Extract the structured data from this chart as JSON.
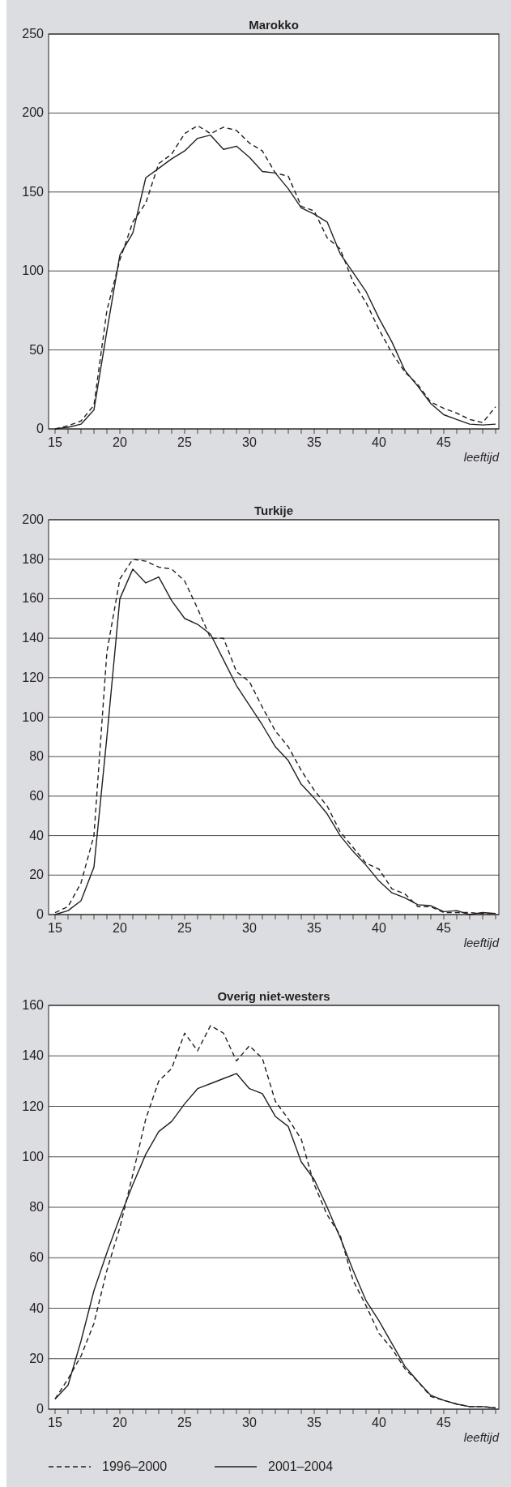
{
  "chart_data": [
    {
      "type": "line",
      "title": "Marokko",
      "xlabel": "leeftijd",
      "x": [
        15,
        16,
        17,
        18,
        19,
        20,
        21,
        22,
        23,
        24,
        25,
        26,
        27,
        28,
        29,
        30,
        31,
        32,
        33,
        34,
        35,
        36,
        37,
        38,
        39,
        40,
        41,
        42,
        43,
        44,
        45,
        46,
        47,
        48,
        49
      ],
      "xlim": [
        14.5,
        49.25
      ],
      "xticks": [
        15,
        {
          "value": 16,
          "label": null
        },
        {
          "value": 17,
          "label": null
        },
        {
          "value": 18,
          "label": null
        },
        {
          "value": 19,
          "label": null
        },
        20,
        {
          "value": 21,
          "label": null
        },
        {
          "value": 22,
          "label": null
        },
        {
          "value": 23,
          "label": null
        },
        {
          "value": 24,
          "label": null
        },
        25,
        {
          "value": 26,
          "label": null
        },
        {
          "value": 27,
          "label": null
        },
        {
          "value": 28,
          "label": null
        },
        {
          "value": 29,
          "label": null
        },
        30,
        {
          "value": 31,
          "label": null
        },
        {
          "value": 32,
          "label": null
        },
        {
          "value": 33,
          "label": null
        },
        {
          "value": 34,
          "label": null
        },
        35,
        {
          "value": 36,
          "label": null
        },
        {
          "value": 37,
          "label": null
        },
        {
          "value": 38,
          "label": null
        },
        {
          "value": 39,
          "label": null
        },
        40,
        {
          "value": 41,
          "label": null
        },
        {
          "value": 42,
          "label": null
        },
        {
          "value": 43,
          "label": null
        },
        {
          "value": 44,
          "label": null
        },
        45,
        {
          "value": 46,
          "label": null
        },
        {
          "value": 47,
          "label": null
        },
        {
          "value": 48,
          "label": null
        },
        {
          "value": 49,
          "label": null
        }
      ],
      "ylim": [
        0,
        250
      ],
      "yticks": [
        0,
        50,
        100,
        150,
        200,
        250
      ],
      "grid": "y",
      "series": [
        {
          "color": "#231f20",
          "line_style": "dashed",
          "values": [
            0,
            2,
            5,
            15,
            75,
            107,
            131,
            143,
            168,
            174,
            187,
            192,
            187,
            191,
            189,
            181,
            176,
            162,
            160,
            141,
            138,
            121,
            114,
            93,
            80,
            63,
            48,
            36,
            28,
            17,
            13,
            10,
            6,
            4,
            14
          ]
        },
        {
          "color": "#231f20",
          "line_style": "solid",
          "values": [
            0,
            1,
            3,
            12,
            62,
            110,
            124,
            159,
            165,
            171,
            176,
            184,
            186,
            177,
            179,
            172,
            163,
            162,
            152,
            140,
            136,
            131,
            111,
            99,
            87,
            70,
            55,
            37,
            27,
            16,
            9,
            6,
            3,
            2.5,
            3
          ]
        }
      ]
    },
    {
      "type": "line",
      "title": "Turkije",
      "xlabel": "leeftijd",
      "x": [
        15,
        16,
        17,
        18,
        19,
        20,
        21,
        22,
        23,
        24,
        25,
        26,
        27,
        28,
        29,
        30,
        31,
        32,
        33,
        34,
        35,
        36,
        37,
        38,
        39,
        40,
        41,
        42,
        43,
        44,
        45,
        46,
        47,
        48,
        49
      ],
      "xlim": [
        14.5,
        49.25
      ],
      "xticks": [
        15,
        {
          "value": 16,
          "label": null
        },
        {
          "value": 17,
          "label": null
        },
        {
          "value": 18,
          "label": null
        },
        {
          "value": 19,
          "label": null
        },
        20,
        {
          "value": 21,
          "label": null
        },
        {
          "value": 22,
          "label": null
        },
        {
          "value": 23,
          "label": null
        },
        {
          "value": 24,
          "label": null
        },
        25,
        {
          "value": 26,
          "label": null
        },
        {
          "value": 27,
          "label": null
        },
        {
          "value": 28,
          "label": null
        },
        {
          "value": 29,
          "label": null
        },
        30,
        {
          "value": 31,
          "label": null
        },
        {
          "value": 32,
          "label": null
        },
        {
          "value": 33,
          "label": null
        },
        {
          "value": 34,
          "label": null
        },
        35,
        {
          "value": 36,
          "label": null
        },
        {
          "value": 37,
          "label": null
        },
        {
          "value": 38,
          "label": null
        },
        {
          "value": 39,
          "label": null
        },
        40,
        {
          "value": 41,
          "label": null
        },
        {
          "value": 42,
          "label": null
        },
        {
          "value": 43,
          "label": null
        },
        {
          "value": 44,
          "label": null
        },
        45,
        {
          "value": 46,
          "label": null
        },
        {
          "value": 47,
          "label": null
        },
        {
          "value": 48,
          "label": null
        },
        {
          "value": 49,
          "label": null
        }
      ],
      "ylim": [
        0,
        200
      ],
      "yticks": [
        0,
        20,
        40,
        60,
        80,
        100,
        120,
        140,
        160,
        180,
        200
      ],
      "grid": "y",
      "series": [
        {
          "color": "#231f20",
          "line_style": "dashed",
          "values": [
            1,
            4,
            16,
            40,
            133,
            170,
            180,
            179,
            176,
            175,
            169,
            155,
            140,
            140,
            123,
            118,
            105,
            93,
            85,
            73,
            63,
            55,
            42,
            34,
            26,
            23,
            13,
            10.5,
            4,
            4,
            1,
            1,
            1,
            0.5,
            0.5
          ]
        },
        {
          "color": "#231f20",
          "line_style": "solid",
          "values": [
            0,
            2,
            7,
            24,
            90,
            160,
            175,
            168,
            171,
            159,
            150,
            147,
            142,
            129,
            116,
            106,
            96,
            85,
            78,
            66,
            59,
            51,
            40,
            32,
            25,
            17,
            11,
            8.5,
            5,
            4.5,
            1.5,
            2,
            0,
            1,
            0.5
          ]
        }
      ]
    },
    {
      "type": "line",
      "title": "Overig niet-westers",
      "xlabel": "leeftijd",
      "x": [
        15,
        16,
        17,
        18,
        19,
        20,
        21,
        22,
        23,
        24,
        25,
        26,
        27,
        28,
        29,
        30,
        31,
        32,
        33,
        34,
        35,
        36,
        37,
        38,
        39,
        40,
        41,
        42,
        43,
        44,
        45,
        46,
        47,
        48,
        49
      ],
      "xlim": [
        14.5,
        49.25
      ],
      "xticks": [
        15,
        {
          "value": 16,
          "label": null
        },
        {
          "value": 17,
          "label": null
        },
        {
          "value": 18,
          "label": null
        },
        {
          "value": 19,
          "label": null
        },
        20,
        {
          "value": 21,
          "label": null
        },
        {
          "value": 22,
          "label": null
        },
        {
          "value": 23,
          "label": null
        },
        {
          "value": 24,
          "label": null
        },
        25,
        {
          "value": 26,
          "label": null
        },
        {
          "value": 27,
          "label": null
        },
        {
          "value": 28,
          "label": null
        },
        {
          "value": 29,
          "label": null
        },
        30,
        {
          "value": 31,
          "label": null
        },
        {
          "value": 32,
          "label": null
        },
        {
          "value": 33,
          "label": null
        },
        {
          "value": 34,
          "label": null
        },
        35,
        {
          "value": 36,
          "label": null
        },
        {
          "value": 37,
          "label": null
        },
        {
          "value": 38,
          "label": null
        },
        {
          "value": 39,
          "label": null
        },
        40,
        {
          "value": 41,
          "label": null
        },
        {
          "value": 42,
          "label": null
        },
        {
          "value": 43,
          "label": null
        },
        {
          "value": 44,
          "label": null
        },
        45,
        {
          "value": 46,
          "label": null
        },
        {
          "value": 47,
          "label": null
        },
        {
          "value": 48,
          "label": null
        },
        {
          "value": 49,
          "label": null
        }
      ],
      "ylim": [
        0,
        160
      ],
      "yticks": [
        0,
        20,
        40,
        60,
        80,
        100,
        120,
        140,
        160
      ],
      "grid": "y",
      "legend": "bottom",
      "series": [
        {
          "name": "1996–2000",
          "color": "#231f20",
          "line_style": "dashed",
          "values": [
            4,
            12,
            21,
            34,
            55,
            72,
            93,
            115,
            130,
            135,
            149,
            142,
            152,
            149,
            138,
            144,
            139,
            122,
            115,
            107,
            89,
            77,
            69,
            51,
            41,
            30,
            24,
            16,
            11,
            5,
            3.5,
            2,
            1,
            1,
            0.5
          ]
        },
        {
          "name": "2001–2004",
          "color": "#231f20",
          "line_style": "solid",
          "values": [
            4,
            9.5,
            27,
            47,
            62,
            76,
            89,
            101,
            110,
            114,
            121,
            127,
            129,
            131,
            133,
            127,
            125,
            116,
            112,
            98,
            91,
            80,
            68,
            55,
            43,
            35,
            26,
            17,
            11,
            5.5,
            3.5,
            2,
            1,
            1,
            0.5
          ]
        }
      ]
    }
  ]
}
